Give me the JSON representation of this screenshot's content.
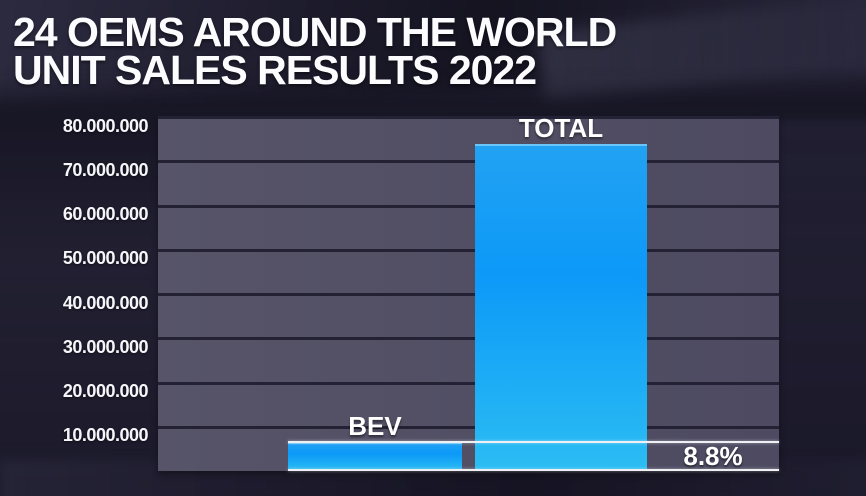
{
  "header": {
    "title_line1": "24 OEMS AROUND THE WORLD",
    "title_line2": "UNIT SALES RESULTS 2022"
  },
  "chart_data": {
    "type": "bar",
    "title": "24 OEMS AROUND THE WORLD UNIT SALES RESULTS 2022",
    "categories": [
      "BEV",
      "TOTAL"
    ],
    "values": [
      6500000,
      74000000
    ],
    "annotation": "8.8%",
    "xlabel": "",
    "ylabel": "",
    "ylim": [
      0,
      80000000
    ],
    "legend": "none",
    "grid": "horizontal",
    "yticks": [
      {
        "value": 80000000,
        "label": "80.000.000"
      },
      {
        "value": 70000000,
        "label": "70.000.000"
      },
      {
        "value": 60000000,
        "label": "60.000.000"
      },
      {
        "value": 50000000,
        "label": "50.000.000"
      },
      {
        "value": 40000000,
        "label": "40.000.000"
      },
      {
        "value": 30000000,
        "label": "30.000.000"
      },
      {
        "value": 20000000,
        "label": "20.000.000"
      },
      {
        "value": 10000000,
        "label": "10.000.000"
      }
    ]
  },
  "colors": {
    "background": "#201e2f",
    "plot_band": "#514e65",
    "gridline": "#242134",
    "bar_blue_top": "#22a2f2",
    "bar_blue_bottom": "#2bbdf3",
    "marker_line": "#eef0f4",
    "text": "#ffffff"
  }
}
